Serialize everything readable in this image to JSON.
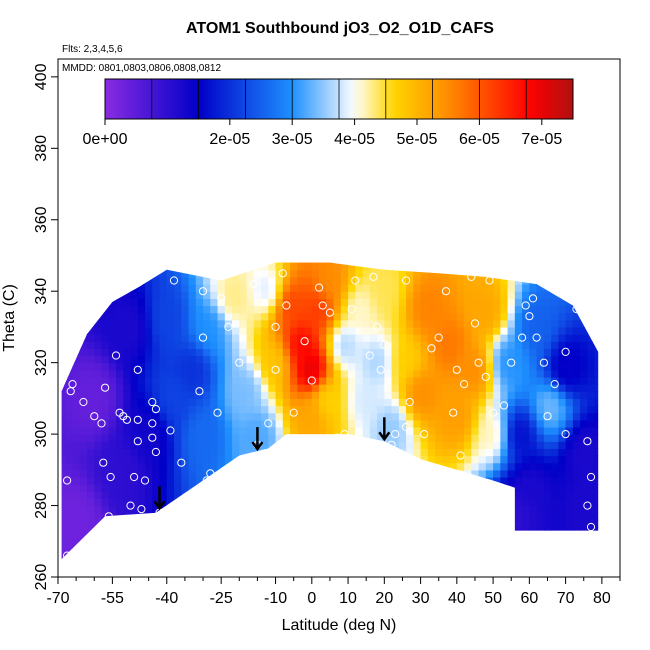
{
  "chart_data": {
    "type": "heatmap",
    "title": "ATOM1 Southbound jO3_O2_O1D_CAFS",
    "subtitle": "Flts: 2,3,4,5,6",
    "annotation": "MMDD: 0801,0803,0806,0808,0812",
    "xlabel": "Latitude (deg N)",
    "ylabel": "Theta (C)",
    "xlim": [
      -70,
      85
    ],
    "ylim": [
      260,
      405
    ],
    "x_ticks": [
      -70,
      -55,
      -40,
      -25,
      -10,
      0,
      10,
      20,
      30,
      40,
      50,
      60,
      70,
      80
    ],
    "x_minor_ticks": [
      -65,
      -60,
      -50,
      -45,
      -35,
      -30,
      -20,
      -15,
      -5,
      5,
      15,
      25,
      35,
      45,
      55,
      65,
      75,
      85
    ],
    "x_tick_labels": [
      "-70",
      "-55",
      "-40",
      "-25",
      "-10",
      "0",
      "10",
      "20",
      "30",
      "40",
      "50",
      "60",
      "70",
      "80"
    ],
    "y_ticks": [
      260,
      280,
      300,
      320,
      340,
      360,
      380,
      400
    ],
    "y_tick_labels": [
      "260",
      "280",
      "300",
      "320",
      "340",
      "360",
      "380",
      "400"
    ],
    "colorbar": {
      "min": 0,
      "max": 7.5e-05,
      "tick_values": [
        0,
        2e-05,
        3e-05,
        4e-05,
        5e-05,
        6e-05,
        7e-05
      ],
      "tick_labels": [
        "0e+00",
        "2e-05",
        "3e-05",
        "4e-05",
        "5e-05",
        "6e-05",
        "7e-05"
      ],
      "colors": [
        "#8a2be2",
        "#0000c8",
        "#1e90ff",
        "#ffffff",
        "#ffd700",
        "#ff8c00",
        "#ff0000",
        "#b01010"
      ],
      "color_stops": [
        0,
        1.5e-05,
        3e-05,
        4e-05,
        4.6e-05,
        5.5e-05,
        6.8e-05,
        7.5e-05
      ]
    },
    "field_lower_boundary": [
      [
        -69,
        265
      ],
      [
        -57,
        277
      ],
      [
        -43,
        278
      ],
      [
        -30,
        287
      ],
      [
        -20,
        294
      ],
      [
        -12,
        296
      ],
      [
        -7,
        300
      ],
      [
        0,
        300
      ],
      [
        10,
        300
      ],
      [
        20,
        298
      ],
      [
        30,
        293
      ],
      [
        40,
        290
      ],
      [
        50,
        287
      ],
      [
        56,
        285
      ],
      [
        56,
        273
      ],
      [
        79,
        273
      ]
    ],
    "field_upper_boundary": [
      [
        79,
        310
      ],
      [
        79,
        323
      ],
      [
        72,
        336
      ],
      [
        62,
        342
      ],
      [
        48,
        344
      ],
      [
        35,
        345
      ],
      [
        20,
        346
      ],
      [
        5,
        348
      ],
      [
        -10,
        348
      ],
      [
        -25,
        343
      ],
      [
        -40,
        346
      ],
      [
        -48,
        341
      ],
      [
        -55,
        337
      ],
      [
        -62,
        328
      ],
      [
        -69,
        312
      ]
    ],
    "field_anchor_points": [
      [
        -65,
        275,
        3e-06
      ],
      [
        -60,
        310,
        4e-06
      ],
      [
        -52,
        290,
        1e-05
      ],
      [
        -50,
        330,
        1.2e-05
      ],
      [
        -45,
        300,
        1.3e-05
      ],
      [
        -38,
        310,
        2.2e-05
      ],
      [
        -30,
        300,
        2.6e-05
      ],
      [
        -28,
        330,
        3e-05
      ],
      [
        -22,
        338,
        4.3e-05
      ],
      [
        -18,
        312,
        3.4e-05
      ],
      [
        -12,
        340,
        3.8e-05
      ],
      [
        -15,
        300,
        3.2e-05
      ],
      [
        -10,
        320,
        4.8e-05
      ],
      [
        -6,
        336,
        6.2e-05
      ],
      [
        -3,
        325,
        6.8e-05
      ],
      [
        0,
        318,
        7.2e-05
      ],
      [
        2,
        335,
        6.3e-05
      ],
      [
        0,
        305,
        5.2e-05
      ],
      [
        5,
        342,
        5.5e-05
      ],
      [
        4,
        310,
        4.6e-05
      ],
      [
        9,
        325,
        3.6e-05
      ],
      [
        13,
        335,
        4.1e-05
      ],
      [
        18,
        320,
        3.6e-05
      ],
      [
        15,
        310,
        3.8e-05
      ],
      [
        20,
        340,
        4.4e-05
      ],
      [
        22,
        302,
        3.5e-05
      ],
      [
        26,
        320,
        4.7e-05
      ],
      [
        30,
        312,
        5.5e-05
      ],
      [
        32,
        335,
        5.6e-05
      ],
      [
        38,
        325,
        5.7e-05
      ],
      [
        40,
        305,
        5.3e-05
      ],
      [
        45,
        318,
        5.5e-05
      ],
      [
        48,
        334,
        5.2e-05
      ],
      [
        50,
        300,
        4.2e-05
      ],
      [
        54,
        320,
        3e-05
      ],
      [
        57,
        300,
        1.6e-05
      ],
      [
        60,
        285,
        1.2e-05
      ],
      [
        62,
        330,
        2.5e-05
      ],
      [
        66,
        308,
        3.4e-05
      ],
      [
        70,
        318,
        1.4e-05
      ],
      [
        75,
        295,
        1.2e-05
      ],
      [
        76,
        280,
        1.2e-05
      ],
      [
        56,
        278,
        1e-05
      ],
      [
        -40,
        332,
        2.2e-05
      ],
      [
        -33,
        318,
        2e-05
      ]
    ],
    "observation_points": [
      [
        -67.5,
        266
      ],
      [
        -67.5,
        287
      ],
      [
        -66.5,
        312
      ],
      [
        -66,
        314
      ],
      [
        -63,
        309
      ],
      [
        -60,
        305
      ],
      [
        -58,
        303
      ],
      [
        -57.5,
        292
      ],
      [
        -56,
        277
      ],
      [
        -55.5,
        288
      ],
      [
        -53,
        306
      ],
      [
        -52,
        305
      ],
      [
        -51,
        304
      ],
      [
        -50,
        280
      ],
      [
        -49,
        288
      ],
      [
        -48,
        298
      ],
      [
        -48,
        304
      ],
      [
        -47,
        279
      ],
      [
        -46,
        287
      ],
      [
        -44,
        309
      ],
      [
        -44,
        303
      ],
      [
        -44,
        299
      ],
      [
        -43,
        307
      ],
      [
        -43,
        295
      ],
      [
        -42,
        278
      ],
      [
        -39,
        301
      ],
      [
        -38,
        343
      ],
      [
        -36,
        292
      ],
      [
        -31,
        312
      ],
      [
        -29,
        287
      ],
      [
        -28,
        289
      ],
      [
        -26,
        306
      ],
      [
        -25,
        338
      ],
      [
        -23,
        330
      ],
      [
        -18,
        292
      ],
      [
        -15,
        297
      ],
      [
        -12,
        303
      ],
      [
        -10,
        330
      ],
      [
        -7,
        336
      ],
      [
        -5,
        306
      ],
      [
        -2,
        326
      ],
      [
        0,
        315
      ],
      [
        2,
        341
      ],
      [
        3,
        336
      ],
      [
        5,
        334
      ],
      [
        7,
        299
      ],
      [
        9,
        300
      ],
      [
        11,
        335
      ],
      [
        13,
        300
      ],
      [
        17,
        344
      ],
      [
        18,
        330
      ],
      [
        19,
        318
      ],
      [
        20,
        325
      ],
      [
        22,
        297
      ],
      [
        23,
        300
      ],
      [
        26,
        302
      ],
      [
        27,
        309
      ],
      [
        31,
        300
      ],
      [
        35,
        327
      ],
      [
        37,
        340
      ],
      [
        39,
        306
      ],
      [
        40,
        318
      ],
      [
        41,
        294
      ],
      [
        42,
        314
      ],
      [
        45,
        331
      ],
      [
        46,
        320
      ],
      [
        48,
        316
      ],
      [
        50,
        306
      ],
      [
        53,
        308
      ],
      [
        55,
        320
      ],
      [
        58,
        327
      ],
      [
        60,
        333
      ],
      [
        62,
        327
      ],
      [
        64,
        320
      ],
      [
        65,
        305
      ],
      [
        67,
        314
      ],
      [
        70,
        323
      ],
      [
        73,
        335
      ],
      [
        76,
        298
      ],
      [
        76,
        280
      ],
      [
        77,
        274
      ],
      [
        77,
        288
      ],
      [
        -54,
        322
      ],
      [
        -30,
        340
      ],
      [
        -16,
        342
      ],
      [
        -8,
        345
      ],
      [
        12,
        343
      ],
      [
        26,
        343
      ],
      [
        33,
        324
      ],
      [
        49,
        343
      ],
      [
        59,
        336
      ],
      [
        61,
        338
      ],
      [
        -57,
        313
      ],
      [
        -30,
        327
      ],
      [
        70,
        300
      ],
      [
        -10,
        318
      ],
      [
        16,
        322
      ],
      [
        44,
        344
      ],
      [
        -48,
        318
      ],
      [
        -20,
        320
      ]
    ],
    "arrow_latitudes": [
      -42,
      -15,
      20
    ]
  }
}
